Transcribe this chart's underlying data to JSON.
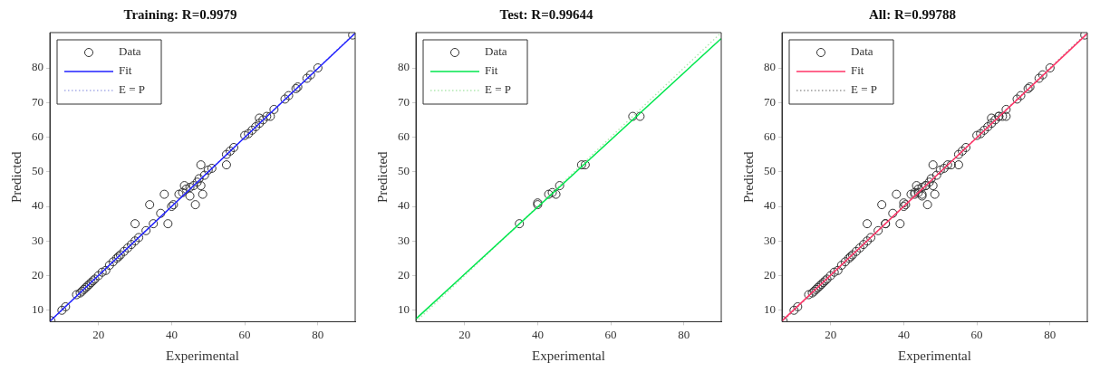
{
  "chart_data": [
    {
      "type": "scatter",
      "title": "Training: R=0.9979",
      "xlabel": "Experimental",
      "ylabel": "Predicted",
      "xlim": [
        6.7,
        90.2
      ],
      "ylim": [
        6.7,
        90.2
      ],
      "xticks": [
        20,
        40,
        60,
        80
      ],
      "yticks": [
        10,
        20,
        30,
        40,
        50,
        60,
        70,
        80
      ],
      "grid": false,
      "legend": "top left",
      "series": [
        {
          "name": "Data",
          "type": "scatter",
          "marker": "circle",
          "color": "#333333",
          "x": [
            7,
            10,
            11,
            14,
            15,
            15.5,
            16,
            16.5,
            17,
            17.5,
            18,
            18.5,
            19,
            20,
            21,
            22,
            23,
            24,
            25,
            25.5,
            26,
            27,
            28,
            29,
            30,
            30,
            31,
            33,
            34,
            35,
            37,
            38,
            39,
            40,
            40.5,
            42,
            43,
            43.5,
            44,
            45,
            45,
            46,
            46.5,
            47,
            47.5,
            48,
            48,
            48.5,
            49,
            50,
            51,
            55,
            55,
            56,
            57,
            60,
            61,
            62,
            63,
            64,
            64,
            65,
            66,
            67,
            68,
            71,
            72,
            74,
            74.5,
            77,
            78,
            80,
            89.5
          ],
          "values": [
            7,
            10,
            11,
            14.5,
            15,
            15.5,
            16,
            16.5,
            17,
            17.5,
            18,
            18.5,
            19,
            20,
            21,
            21.5,
            23,
            24,
            25,
            25.5,
            26,
            27,
            28,
            29,
            30,
            35,
            31,
            33,
            40.5,
            35,
            38,
            43.5,
            35,
            40,
            40.5,
            43.5,
            44,
            46,
            45,
            43,
            45.5,
            46,
            40.5,
            47,
            48,
            46,
            52,
            43.5,
            49,
            50.5,
            51,
            52,
            55,
            56,
            57,
            60.5,
            61,
            62,
            63,
            65.5,
            64,
            65,
            66,
            66,
            68,
            71,
            72,
            74,
            74.5,
            77,
            78,
            80,
            89.5
          ]
        },
        {
          "name": "Fit",
          "type": "line",
          "marker": "none",
          "line_style": "solid",
          "color": "#2020ff",
          "x": [
            6.7,
            90.2
          ],
          "values": [
            6.8,
            90
          ]
        },
        {
          "name": "E = P",
          "type": "line",
          "marker": "none",
          "line_style": "dotted",
          "color": "#a8aee8",
          "x": [
            6.7,
            90.2
          ],
          "values": [
            6.7,
            90.2
          ]
        }
      ]
    },
    {
      "type": "scatter",
      "title": "Test: R=0.99644",
      "xlabel": "Experimental",
      "ylabel": "Predicted",
      "xlim": [
        6.7,
        90.2
      ],
      "ylim": [
        6.7,
        90.2
      ],
      "xticks": [
        20,
        40,
        60,
        80
      ],
      "yticks": [
        10,
        20,
        30,
        40,
        50,
        60,
        70,
        80
      ],
      "grid": false,
      "legend": "top left",
      "series": [
        {
          "name": "Data",
          "type": "scatter",
          "marker": "circle",
          "color": "#333333",
          "x": [
            35,
            40,
            40,
            43,
            44,
            45,
            46,
            52,
            53,
            66,
            68
          ],
          "values": [
            35,
            40.5,
            41,
            43.5,
            44,
            43.5,
            46,
            52,
            52,
            66,
            66
          ]
        },
        {
          "name": "Fit",
          "type": "line",
          "marker": "none",
          "line_style": "solid",
          "color": "#00e64d",
          "x": [
            6.7,
            90.2
          ],
          "values": [
            7.5,
            88.5
          ]
        },
        {
          "name": "E = P",
          "type": "line",
          "marker": "none",
          "line_style": "dotted",
          "color": "#b0e8b0",
          "x": [
            6.7,
            90.2
          ],
          "values": [
            6.7,
            90.2
          ]
        }
      ]
    },
    {
      "type": "scatter",
      "title": "All: R=0.99788",
      "xlabel": "Experimental",
      "ylabel": "Predicted",
      "xlim": [
        6.7,
        90.2
      ],
      "ylim": [
        6.7,
        90.2
      ],
      "xticks": [
        20,
        40,
        60,
        80
      ],
      "yticks": [
        10,
        20,
        30,
        40,
        50,
        60,
        70,
        80
      ],
      "grid": false,
      "legend": "top left",
      "series": [
        {
          "name": "Data",
          "type": "scatter",
          "marker": "circle",
          "color": "#333333",
          "x": [
            7,
            10,
            11,
            14,
            15,
            15.5,
            16,
            16.5,
            17,
            17.5,
            18,
            18.5,
            19,
            20,
            21,
            22,
            23,
            24,
            25,
            25.5,
            26,
            27,
            28,
            29,
            30,
            30,
            31,
            33,
            34,
            35,
            35,
            37,
            38,
            39,
            40,
            40,
            40.5,
            42,
            43,
            43,
            43.5,
            44,
            44,
            45,
            45,
            45,
            46,
            46,
            46.5,
            47,
            47.5,
            48,
            48,
            48.5,
            49,
            50,
            51,
            52,
            53,
            55,
            55,
            56,
            57,
            60,
            61,
            62,
            63,
            64,
            64,
            65,
            66,
            66,
            67,
            68,
            68,
            71,
            72,
            74,
            74.5,
            77,
            78,
            80,
            89.5
          ],
          "values": [
            7,
            10,
            11,
            14.5,
            15,
            15.5,
            16,
            16.5,
            17,
            17.5,
            18,
            18.5,
            19,
            20,
            21,
            21.5,
            23,
            24,
            25,
            25.5,
            26,
            27,
            28,
            29,
            30,
            35,
            31,
            33,
            40.5,
            35,
            35,
            38,
            43.5,
            35,
            40,
            41,
            40.5,
            43.5,
            44,
            43.5,
            46,
            45,
            44,
            43,
            45.5,
            43.5,
            46,
            46,
            40.5,
            47,
            48,
            46,
            52,
            43.5,
            49,
            50.5,
            51,
            52,
            52,
            52,
            55,
            56,
            57,
            60.5,
            61,
            62,
            63,
            65.5,
            64,
            65,
            66,
            66,
            66,
            68,
            66,
            71,
            72,
            74,
            74.5,
            77,
            78,
            80,
            89.5
          ]
        },
        {
          "name": "Fit",
          "type": "line",
          "marker": "none",
          "line_style": "solid",
          "color": "#ff3366",
          "x": [
            6.7,
            90.2
          ],
          "values": [
            6.9,
            89.9
          ]
        },
        {
          "name": "E = P",
          "type": "line",
          "marker": "none",
          "line_style": "dotted",
          "color": "#999999",
          "x": [
            6.7,
            90.2
          ],
          "values": [
            6.7,
            90.2
          ]
        }
      ]
    }
  ]
}
